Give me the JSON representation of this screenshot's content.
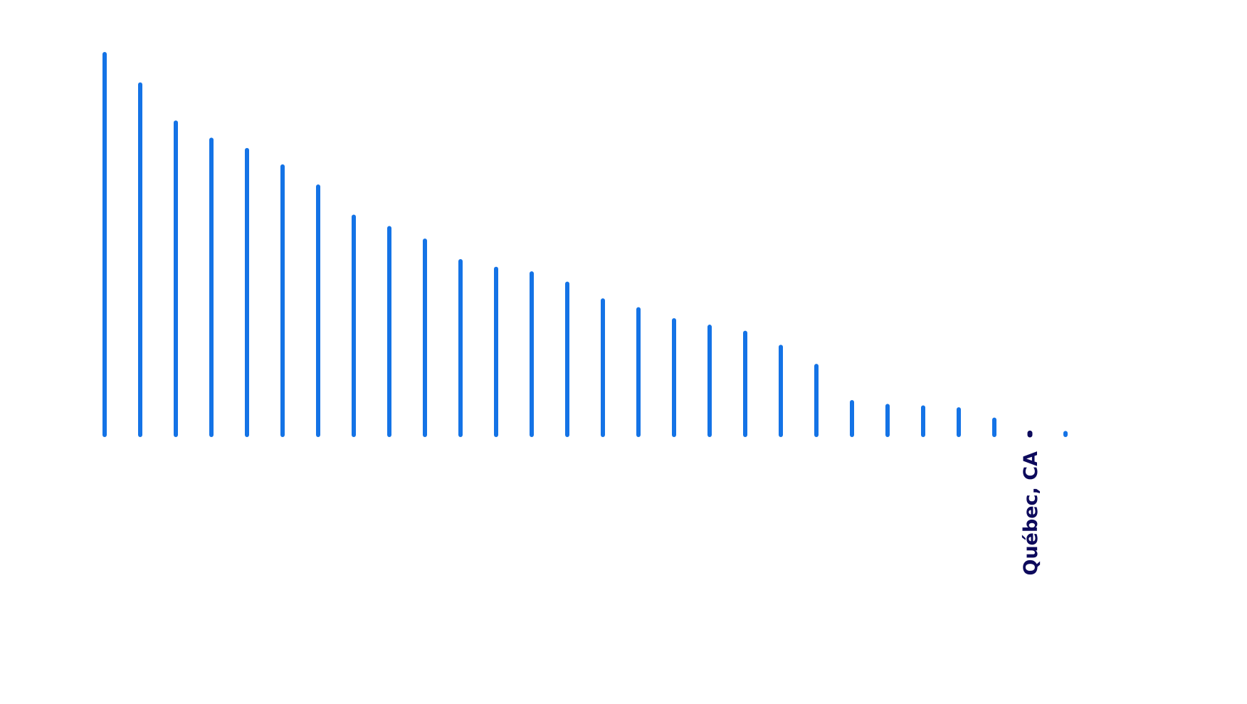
{
  "chart_data": {
    "type": "bar",
    "orientation": "vertical-lollipop",
    "categories": [
      "",
      "",
      "",
      "",
      "",
      "",
      "",
      "",
      "",
      "",
      "",
      "",
      "",
      "",
      "",
      "",
      "",
      "",
      "",
      "",
      "",
      "",
      "",
      "",
      "",
      "",
      "",
      ""
    ],
    "values": [
      100,
      92,
      82,
      77.5,
      74.8,
      70.5,
      65.2,
      57.3,
      54.3,
      51,
      45.6,
      43.6,
      42.4,
      39.7,
      35.3,
      33,
      30.1,
      28.4,
      26.8,
      23.1,
      18.1,
      8.6,
      7.6,
      7.2,
      6.7,
      4,
      0.5,
      0.5
    ],
    "highlight_index": 26,
    "highlight_label": "Québec, CA",
    "ylim": [
      0,
      100
    ],
    "grid": false,
    "legend": "none",
    "title": "",
    "xlabel": "",
    "ylabel": "",
    "colors": {
      "bar": "#1473e6",
      "highlight": "#0d0a5c",
      "background": "#ffffff"
    }
  }
}
